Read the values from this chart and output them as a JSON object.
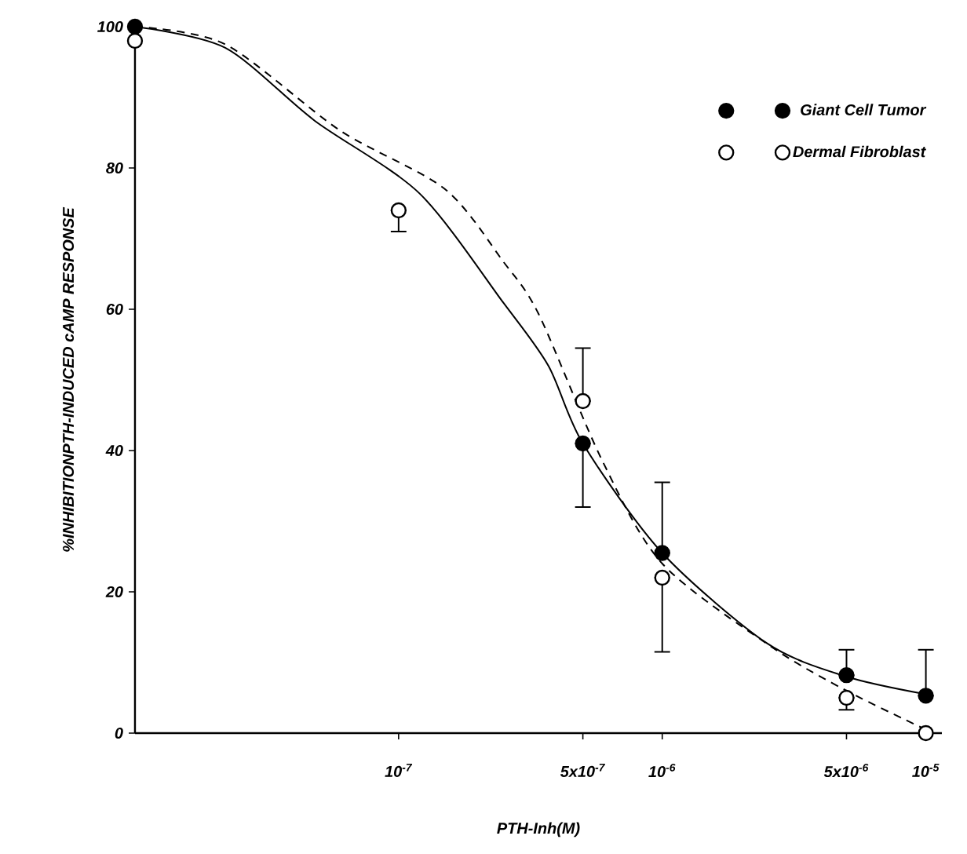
{
  "chart_data": {
    "type": "scatter",
    "xlabel": "PTH-Inh(M)",
    "ylabel": "%INHIBITIONPTH-INDUCED cAMP RESPONSE",
    "log": "x",
    "xlim": [
      1e-08,
      1.15e-05
    ],
    "ylim": [
      0,
      100
    ],
    "xticks": [
      {
        "value": 1e-07,
        "label": "10$^{-7}$"
      },
      {
        "value": 5e-07,
        "label": "5x10$^{-7}$"
      },
      {
        "value": 1e-06,
        "label": "10$^{-6}$"
      },
      {
        "value": 5e-06,
        "label": "5x10$^{-6}$"
      },
      {
        "value": 1e-05,
        "label": "10$^{-5}$"
      }
    ],
    "yticks": [
      0,
      20,
      40,
      60,
      80,
      100
    ],
    "legend": "top right",
    "grid": false,
    "series": [
      {
        "name": "Giant Cell Tumor",
        "marker": "circle",
        "color": "#000000",
        "line_style": "solid",
        "x": [
          1e-08,
          5e-07,
          1e-06,
          5e-06,
          1e-05
        ],
        "values": [
          100,
          41,
          25.5,
          8.2,
          5.3
        ],
        "errors": [
          null,
          [
            32,
            41
          ],
          [
            25.5,
            35.5
          ],
          [
            8.2,
            11.8
          ],
          [
            5.3,
            11.8
          ]
        ]
      },
      {
        "name": "Dermal Fibroblast",
        "marker": "circle",
        "color": "#ffffff",
        "line_style": "dashed",
        "x": [
          1e-08,
          1e-07,
          5e-07,
          1e-06,
          5e-06,
          1e-05
        ],
        "values": [
          98,
          74,
          47,
          22,
          5,
          0
        ],
        "errors": [
          null,
          [
            71,
            74
          ],
          [
            47,
            54.5
          ],
          [
            11.5,
            22
          ],
          [
            3.3,
            5
          ],
          null
        ]
      },
      {
        "type": "line",
        "color": "#000000",
        "line_style": "solid",
        "x": [
          1e-08,
          2.2e-08,
          4.8e-08,
          1.2e-07,
          2.5e-07,
          3.7e-07,
          5e-07,
          1e-06,
          2.5e-06,
          5e-06,
          1e-05
        ],
        "values": [
          100,
          97,
          86.7,
          76.4,
          60.9,
          52,
          41,
          25.5,
          12.7,
          8,
          5.5
        ]
      },
      {
        "type": "line",
        "color": "#000000",
        "line_style": "dashed",
        "x": [
          1e-08,
          2.2e-08,
          6e-08,
          1.5e-07,
          2.5e-07,
          3.4e-07,
          5.9e-07,
          1e-06,
          2.6e-06,
          5e-06,
          1e-05
        ],
        "values": [
          100,
          97.5,
          85.3,
          77,
          66.7,
          59.3,
          38.7,
          24,
          12.2,
          6,
          0.5
        ]
      }
    ]
  }
}
